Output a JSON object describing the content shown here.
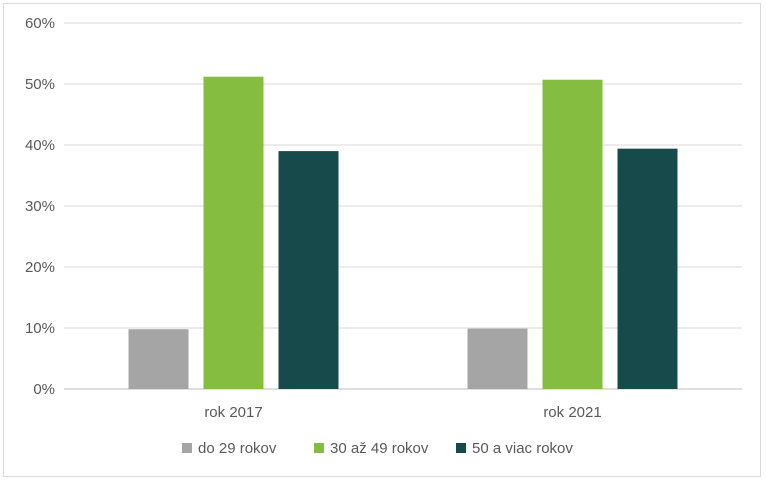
{
  "chart_data": {
    "type": "bar",
    "categories": [
      "rok 2017",
      "rok 2021"
    ],
    "series": [
      {
        "name": "do 29 rokov",
        "values": [
          9.8,
          9.9
        ],
        "color": "#a5a5a5"
      },
      {
        "name": "30 až 49 rokov",
        "values": [
          51.2,
          50.7
        ],
        "color": "#84bd3f"
      },
      {
        "name": "50 a viac rokov",
        "values": [
          39.0,
          39.4
        ],
        "color": "#174b4b"
      }
    ],
    "ylim": [
      0,
      60
    ],
    "yticks": [
      0,
      10,
      20,
      30,
      40,
      50,
      60
    ],
    "ytick_labels": [
      "0%",
      "10%",
      "20%",
      "30%",
      "40%",
      "50%",
      "60%"
    ],
    "grid": true,
    "legend": "bottom"
  }
}
